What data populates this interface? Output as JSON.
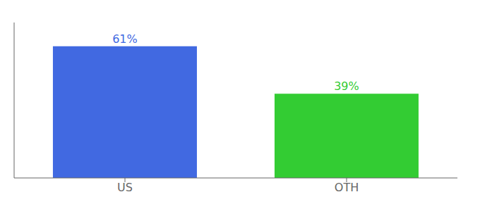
{
  "chart_data": {
    "type": "bar",
    "categories": [
      "US",
      "OTH"
    ],
    "values": [
      61,
      39
    ],
    "value_labels": [
      "61%",
      "39%"
    ],
    "colors": [
      "#4169e1",
      "#33cc33"
    ],
    "ylim": [
      0,
      72
    ],
    "data_labels": true,
    "tick_labels": "x"
  }
}
